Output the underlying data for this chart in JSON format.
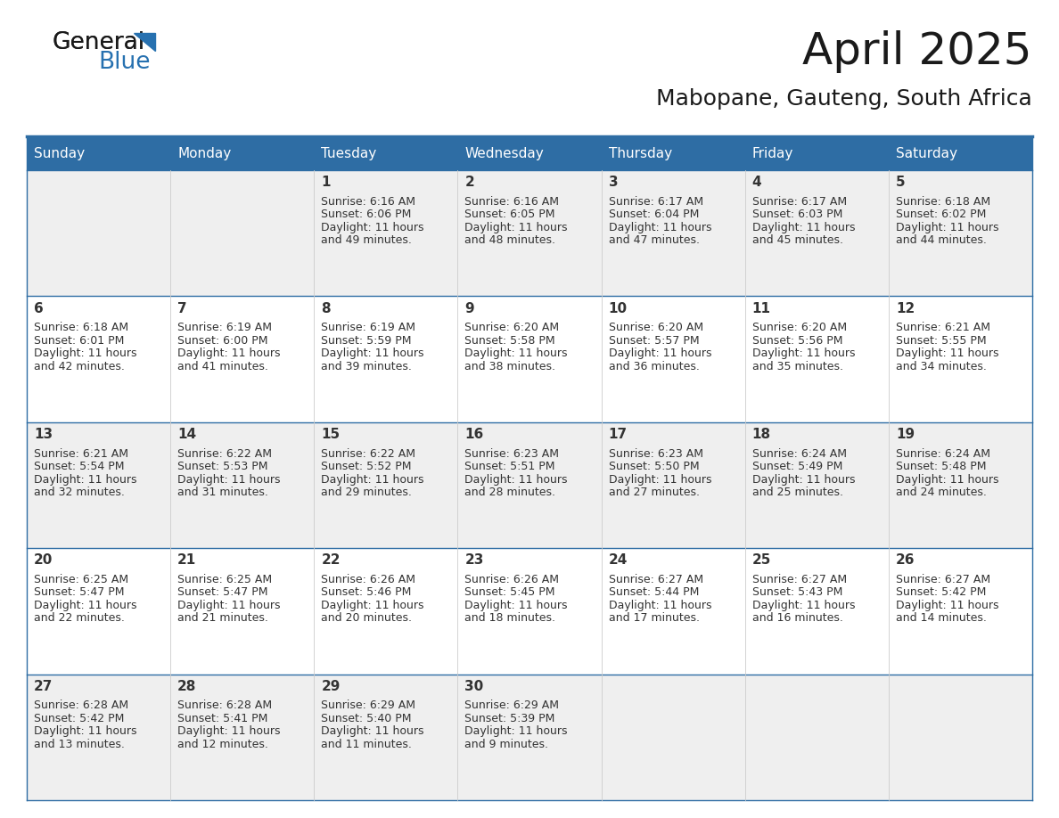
{
  "title": "April 2025",
  "subtitle": "Mabopane, Gauteng, South Africa",
  "days_of_week": [
    "Sunday",
    "Monday",
    "Tuesday",
    "Wednesday",
    "Thursday",
    "Friday",
    "Saturday"
  ],
  "header_bg": "#2E6DA4",
  "header_text": "#FFFFFF",
  "row_bg_odd": "#EFEFEF",
  "row_bg_even": "#FFFFFF",
  "border_color": "#2E6DA4",
  "cell_text_color": "#333333",
  "calendar_data": [
    [
      {
        "day": null,
        "sunrise": null,
        "sunset": null,
        "daylight_hours": null,
        "daylight_mins": null
      },
      {
        "day": null,
        "sunrise": null,
        "sunset": null,
        "daylight_hours": null,
        "daylight_mins": null
      },
      {
        "day": 1,
        "sunrise": "6:16 AM",
        "sunset": "6:06 PM",
        "daylight_hours": 11,
        "daylight_mins": 49
      },
      {
        "day": 2,
        "sunrise": "6:16 AM",
        "sunset": "6:05 PM",
        "daylight_hours": 11,
        "daylight_mins": 48
      },
      {
        "day": 3,
        "sunrise": "6:17 AM",
        "sunset": "6:04 PM",
        "daylight_hours": 11,
        "daylight_mins": 47
      },
      {
        "day": 4,
        "sunrise": "6:17 AM",
        "sunset": "6:03 PM",
        "daylight_hours": 11,
        "daylight_mins": 45
      },
      {
        "day": 5,
        "sunrise": "6:18 AM",
        "sunset": "6:02 PM",
        "daylight_hours": 11,
        "daylight_mins": 44
      }
    ],
    [
      {
        "day": 6,
        "sunrise": "6:18 AM",
        "sunset": "6:01 PM",
        "daylight_hours": 11,
        "daylight_mins": 42
      },
      {
        "day": 7,
        "sunrise": "6:19 AM",
        "sunset": "6:00 PM",
        "daylight_hours": 11,
        "daylight_mins": 41
      },
      {
        "day": 8,
        "sunrise": "6:19 AM",
        "sunset": "5:59 PM",
        "daylight_hours": 11,
        "daylight_mins": 39
      },
      {
        "day": 9,
        "sunrise": "6:20 AM",
        "sunset": "5:58 PM",
        "daylight_hours": 11,
        "daylight_mins": 38
      },
      {
        "day": 10,
        "sunrise": "6:20 AM",
        "sunset": "5:57 PM",
        "daylight_hours": 11,
        "daylight_mins": 36
      },
      {
        "day": 11,
        "sunrise": "6:20 AM",
        "sunset": "5:56 PM",
        "daylight_hours": 11,
        "daylight_mins": 35
      },
      {
        "day": 12,
        "sunrise": "6:21 AM",
        "sunset": "5:55 PM",
        "daylight_hours": 11,
        "daylight_mins": 34
      }
    ],
    [
      {
        "day": 13,
        "sunrise": "6:21 AM",
        "sunset": "5:54 PM",
        "daylight_hours": 11,
        "daylight_mins": 32
      },
      {
        "day": 14,
        "sunrise": "6:22 AM",
        "sunset": "5:53 PM",
        "daylight_hours": 11,
        "daylight_mins": 31
      },
      {
        "day": 15,
        "sunrise": "6:22 AM",
        "sunset": "5:52 PM",
        "daylight_hours": 11,
        "daylight_mins": 29
      },
      {
        "day": 16,
        "sunrise": "6:23 AM",
        "sunset": "5:51 PM",
        "daylight_hours": 11,
        "daylight_mins": 28
      },
      {
        "day": 17,
        "sunrise": "6:23 AM",
        "sunset": "5:50 PM",
        "daylight_hours": 11,
        "daylight_mins": 27
      },
      {
        "day": 18,
        "sunrise": "6:24 AM",
        "sunset": "5:49 PM",
        "daylight_hours": 11,
        "daylight_mins": 25
      },
      {
        "day": 19,
        "sunrise": "6:24 AM",
        "sunset": "5:48 PM",
        "daylight_hours": 11,
        "daylight_mins": 24
      }
    ],
    [
      {
        "day": 20,
        "sunrise": "6:25 AM",
        "sunset": "5:47 PM",
        "daylight_hours": 11,
        "daylight_mins": 22
      },
      {
        "day": 21,
        "sunrise": "6:25 AM",
        "sunset": "5:47 PM",
        "daylight_hours": 11,
        "daylight_mins": 21
      },
      {
        "day": 22,
        "sunrise": "6:26 AM",
        "sunset": "5:46 PM",
        "daylight_hours": 11,
        "daylight_mins": 20
      },
      {
        "day": 23,
        "sunrise": "6:26 AM",
        "sunset": "5:45 PM",
        "daylight_hours": 11,
        "daylight_mins": 18
      },
      {
        "day": 24,
        "sunrise": "6:27 AM",
        "sunset": "5:44 PM",
        "daylight_hours": 11,
        "daylight_mins": 17
      },
      {
        "day": 25,
        "sunrise": "6:27 AM",
        "sunset": "5:43 PM",
        "daylight_hours": 11,
        "daylight_mins": 16
      },
      {
        "day": 26,
        "sunrise": "6:27 AM",
        "sunset": "5:42 PM",
        "daylight_hours": 11,
        "daylight_mins": 14
      }
    ],
    [
      {
        "day": 27,
        "sunrise": "6:28 AM",
        "sunset": "5:42 PM",
        "daylight_hours": 11,
        "daylight_mins": 13
      },
      {
        "day": 28,
        "sunrise": "6:28 AM",
        "sunset": "5:41 PM",
        "daylight_hours": 11,
        "daylight_mins": 12
      },
      {
        "day": 29,
        "sunrise": "6:29 AM",
        "sunset": "5:40 PM",
        "daylight_hours": 11,
        "daylight_mins": 11
      },
      {
        "day": 30,
        "sunrise": "6:29 AM",
        "sunset": "5:39 PM",
        "daylight_hours": 11,
        "daylight_mins": 9
      },
      {
        "day": null,
        "sunrise": null,
        "sunset": null,
        "daylight_hours": null,
        "daylight_mins": null
      },
      {
        "day": null,
        "sunrise": null,
        "sunset": null,
        "daylight_hours": null,
        "daylight_mins": null
      },
      {
        "day": null,
        "sunrise": null,
        "sunset": null,
        "daylight_hours": null,
        "daylight_mins": null
      }
    ]
  ],
  "logo_color_general": "#1a1a1a",
  "logo_color_blue": "#2771B0",
  "logo_triangle_color": "#2771B0",
  "title_color": "#1a1a1a",
  "subtitle_color": "#1a1a1a"
}
